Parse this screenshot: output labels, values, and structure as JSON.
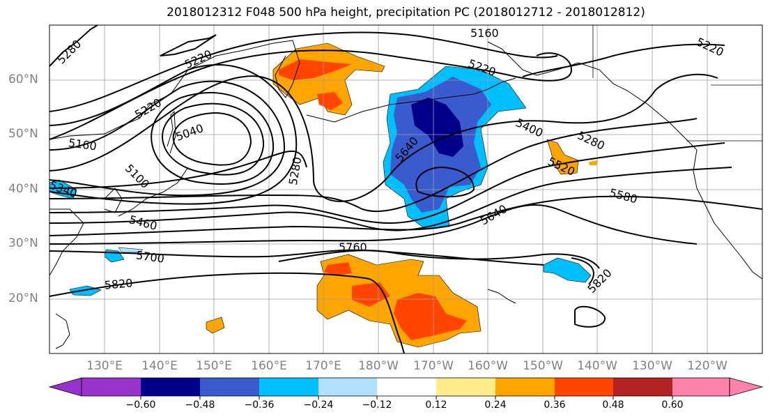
{
  "title": "2018012312 F048 500 hPa height, precipitation PC (2018012712 - 2018012812)",
  "lat_labels": [
    "60°N",
    "50°N",
    "40°N",
    "30°N",
    "20°N"
  ],
  "lon_labels": [
    "130°E",
    "140°E",
    "150°E",
    "160°E",
    "170°E",
    "180°W",
    "170°W",
    "160°W",
    "150°W",
    "140°W",
    "130°W",
    "120°W"
  ],
  "contour_labels": [
    "5280",
    "5220",
    "5160",
    "5220",
    "5040",
    "5160",
    "5100",
    "5280",
    "5340",
    "5460",
    "5700",
    "5820",
    "5760",
    "5640",
    "5400",
    "5280",
    "5520",
    "5580",
    "5640",
    "5220",
    "5220",
    "5820"
  ],
  "colorbar": {
    "ticks": [
      "−0.60",
      "−0.48",
      "−0.36",
      "−0.24",
      "−0.12",
      "0.12",
      "0.24",
      "0.36",
      "0.48",
      "0.60"
    ],
    "colors": [
      "#9932cc",
      "#00008b",
      "#3a5bcd",
      "#00bfff",
      "#b0e2ff",
      "#ffffff",
      "#ffec8b",
      "#ffa500",
      "#ff4500",
      "#b22222",
      "#ff82ab"
    ]
  },
  "colors": {
    "contour": "#000000",
    "grid": "#9e9e9e",
    "coast": "#000000"
  }
}
